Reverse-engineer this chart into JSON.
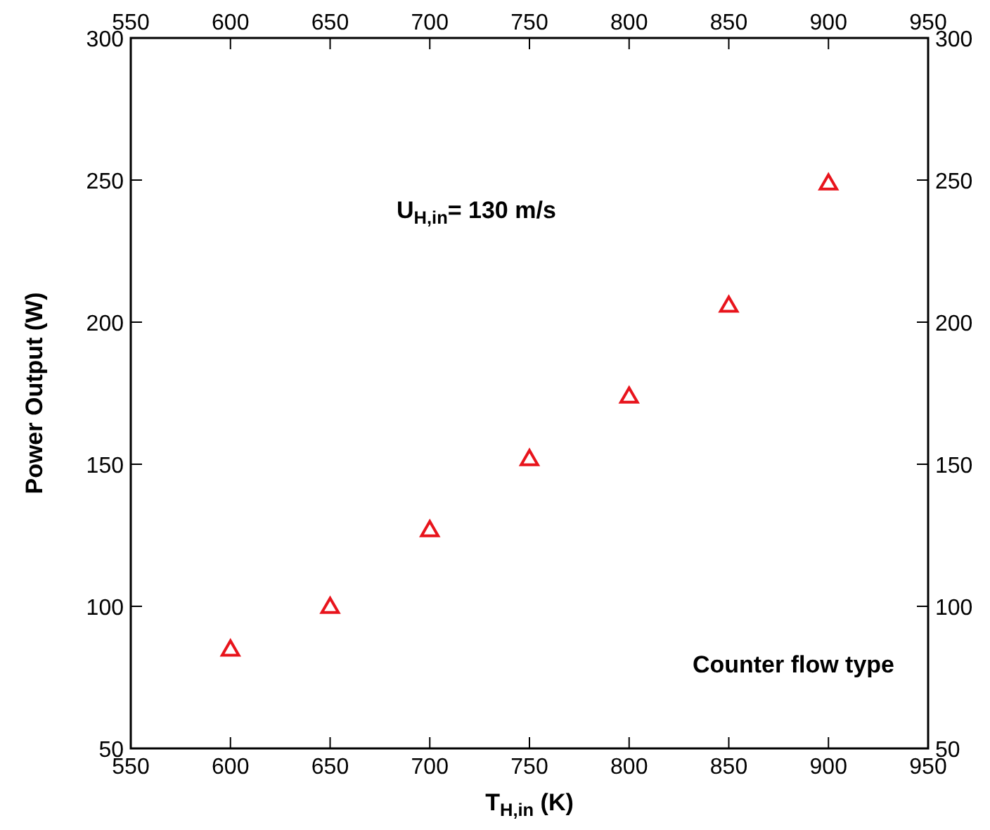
{
  "chart_data": {
    "type": "scatter",
    "xlabel": "T$_{H,in}$ (K)",
    "ylabel": "Power Output (W)",
    "x": [
      600,
      650,
      700,
      750,
      800,
      850,
      900
    ],
    "series": [
      {
        "color": "#e8141c",
        "values": [
          85,
          100,
          127,
          152,
          174,
          206,
          249
        ]
      }
    ],
    "xlim": [
      550,
      950
    ],
    "xticks": [
      550,
      600,
      650,
      700,
      750,
      800,
      850,
      900,
      950
    ],
    "ylim": [
      50,
      300
    ],
    "yticks": [
      50,
      100,
      150,
      200,
      250,
      300
    ],
    "x2lim": [
      550,
      950
    ],
    "x2ticks": [
      550,
      600,
      650,
      700,
      750,
      800,
      850,
      900,
      950
    ],
    "y2lim": [
      50,
      300
    ],
    "y2ticks": [
      50,
      100,
      150,
      200,
      250,
      300
    ],
    "marker": "triangle",
    "grid": false,
    "annotations": [
      "U$_{H,in}$= 130 m/s",
      "Counter flow type"
    ]
  }
}
